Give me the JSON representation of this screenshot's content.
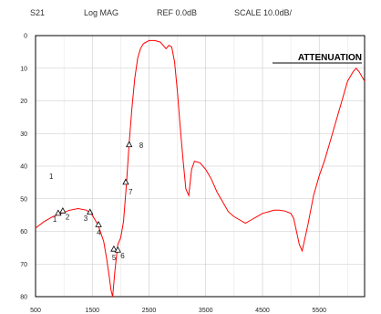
{
  "header": {
    "parameter": "S21",
    "format": "Log MAG",
    "reference": "REF 0.0dB",
    "scale": "SCALE 10.0dB/"
  },
  "chart_data": {
    "type": "line",
    "title": "ATTENUATION",
    "xlabel": "",
    "ylabel": "",
    "xlim": [
      500,
      6300
    ],
    "ylim": [
      0,
      80
    ],
    "y_inverted": true,
    "grid": true,
    "x_ticks": [
      "500",
      "1500",
      "2500",
      "3500",
      "4500",
      "5500"
    ],
    "y_ticks": [
      "0",
      "10",
      "20",
      "30",
      "40",
      "50",
      "60",
      "70",
      "80"
    ],
    "series_color": "#ff0000",
    "series": [
      {
        "x": [
          500,
          650,
          800,
          950,
          1100,
          1250,
          1400,
          1500,
          1600,
          1700,
          1750,
          1800,
          1830,
          1860,
          1900,
          1950,
          2000,
          2050,
          2100,
          2150,
          2200,
          2250,
          2300,
          2350,
          2400,
          2500,
          2600,
          2700,
          2800,
          2850,
          2900,
          2950,
          3000,
          3050,
          3100,
          3150,
          3200,
          3250,
          3300,
          3400,
          3500,
          3600,
          3700,
          3800,
          3900,
          4000,
          4100,
          4200,
          4300,
          4400,
          4500,
          4600,
          4700,
          4800,
          4900,
          5000,
          5050,
          5100,
          5150,
          5200,
          5300,
          5400,
          5500,
          5600,
          5700,
          5800,
          5900,
          6000,
          6100,
          6150,
          6200,
          6300
        ],
        "values": [
          59,
          57,
          55.5,
          54.5,
          53.5,
          53,
          53.5,
          55,
          58,
          63,
          68,
          74,
          78,
          80,
          72,
          64,
          62,
          57,
          46,
          33,
          22,
          13,
          7,
          4,
          2.5,
          1.5,
          1.5,
          2,
          4,
          3,
          3.5,
          8,
          17,
          28,
          38,
          47,
          49,
          41,
          38.5,
          39,
          41,
          44,
          48,
          51,
          54,
          55.5,
          56.5,
          57.5,
          56.5,
          55.5,
          54.5,
          54,
          53.5,
          53.5,
          53.8,
          54.5,
          56,
          60,
          64,
          66,
          58,
          49,
          43,
          38,
          32,
          26,
          20,
          14,
          11,
          10,
          11,
          14
        ]
      }
    ],
    "markers": [
      {
        "label": "1",
        "x": 900,
        "y": 54.5
      },
      {
        "label": "2",
        "x": 980,
        "y": 53.8
      },
      {
        "label": "3",
        "x": 1460,
        "y": 54.2
      },
      {
        "label": "4",
        "x": 1610,
        "y": 58
      },
      {
        "label": "5",
        "x": 1880,
        "y": 65.5
      },
      {
        "label": "6",
        "x": 1950,
        "y": 65.8
      },
      {
        "label": "7",
        "x": 2090,
        "y": 45
      },
      {
        "label": "8",
        "x": 2150,
        "y": 33.5
      }
    ],
    "side_label": "1"
  }
}
